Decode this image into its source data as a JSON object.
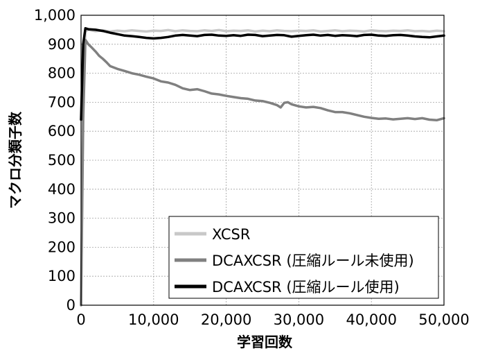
{
  "chart_data": {
    "type": "line",
    "xlabel": "学習回数",
    "ylabel": "マクロ分類子数",
    "xlim": [
      0,
      50000
    ],
    "ylim": [
      0,
      1000
    ],
    "x_ticks": [
      0,
      10000,
      20000,
      30000,
      40000,
      50000
    ],
    "x_tick_labels": [
      "0",
      "10,000",
      "20,000",
      "30,000",
      "40,000",
      "50,000"
    ],
    "y_ticks": [
      0,
      100,
      200,
      300,
      400,
      500,
      600,
      700,
      800,
      900,
      1000
    ],
    "y_tick_labels": [
      "0",
      "100",
      "200",
      "300",
      "400",
      "500",
      "600",
      "700",
      "800",
      "900",
      "1,000"
    ],
    "grid": true,
    "legend_position": "bottom-right",
    "series": [
      {
        "name": "XCSR",
        "color": "#c8c8c8",
        "x": [
          0,
          300,
          600,
          1000,
          2000,
          3000,
          4000,
          5000,
          6000,
          7000,
          8000,
          9000,
          10000,
          11000,
          12000,
          13000,
          14000,
          15000,
          16000,
          17000,
          18000,
          19000,
          20000,
          21000,
          22000,
          23000,
          24000,
          25000,
          26000,
          27000,
          28000,
          29000,
          30000,
          31000,
          32000,
          33000,
          34000,
          35000,
          36000,
          37000,
          38000,
          39000,
          40000,
          41000,
          42000,
          43000,
          44000,
          45000,
          46000,
          47000,
          48000,
          49000,
          50000
        ],
        "values": [
          0,
          700,
          945,
          950,
          945,
          948,
          944,
          947,
          945,
          948,
          946,
          944,
          947,
          946,
          949,
          945,
          948,
          946,
          945,
          948,
          946,
          949,
          945,
          947,
          946,
          948,
          944,
          947,
          945,
          948,
          946,
          945,
          947,
          946,
          948,
          944,
          946,
          948,
          945,
          947,
          946,
          944,
          948,
          946,
          945,
          947,
          946,
          948,
          945,
          946,
          944,
          947,
          945
        ]
      },
      {
        "name": "DCAXCSR (圧縮ルール未使用)",
        "color": "#808080",
        "x": [
          0,
          300,
          600,
          1000,
          1500,
          2000,
          2500,
          3000,
          3500,
          4000,
          5000,
          6000,
          7000,
          8000,
          9000,
          10000,
          11000,
          12000,
          13000,
          14000,
          15000,
          16000,
          17000,
          18000,
          19000,
          20000,
          21000,
          22000,
          23000,
          24000,
          25000,
          26000,
          27000,
          27500,
          28000,
          28500,
          29000,
          30000,
          31000,
          32000,
          33000,
          34000,
          35000,
          36000,
          37000,
          38000,
          39000,
          40000,
          41000,
          42000,
          43000,
          44000,
          45000,
          46000,
          47000,
          48000,
          49000,
          50000
        ],
        "values": [
          0,
          640,
          915,
          900,
          888,
          875,
          860,
          850,
          838,
          825,
          815,
          808,
          800,
          795,
          788,
          782,
          772,
          768,
          760,
          748,
          742,
          745,
          738,
          730,
          727,
          722,
          718,
          714,
          712,
          706,
          704,
          698,
          690,
          682,
          698,
          700,
          693,
          686,
          682,
          684,
          680,
          672,
          666,
          666,
          662,
          656,
          650,
          646,
          643,
          644,
          641,
          643,
          645,
          642,
          645,
          640,
          638,
          645
        ]
      },
      {
        "name": "DCAXCSR (圧縮ルール使用)",
        "color": "#000000",
        "x": [
          0,
          300,
          600,
          1000,
          2000,
          3000,
          4000,
          5000,
          6000,
          7000,
          8000,
          9000,
          10000,
          11000,
          12000,
          13000,
          14000,
          15000,
          16000,
          17000,
          18000,
          19000,
          20000,
          21000,
          22000,
          23000,
          24000,
          25000,
          26000,
          27000,
          28000,
          29000,
          30000,
          31000,
          32000,
          33000,
          34000,
          35000,
          36000,
          37000,
          38000,
          39000,
          40000,
          41000,
          42000,
          43000,
          44000,
          45000,
          46000,
          47000,
          48000,
          49000,
          50000
        ],
        "values": [
          640,
          900,
          955,
          952,
          950,
          946,
          940,
          935,
          930,
          928,
          925,
          922,
          920,
          922,
          925,
          930,
          932,
          930,
          928,
          932,
          933,
          930,
          929,
          931,
          929,
          933,
          932,
          928,
          930,
          932,
          931,
          926,
          929,
          931,
          933,
          930,
          932,
          929,
          931,
          930,
          928,
          932,
          933,
          930,
          929,
          931,
          932,
          930,
          927,
          925,
          924,
          927,
          930
        ]
      }
    ]
  }
}
